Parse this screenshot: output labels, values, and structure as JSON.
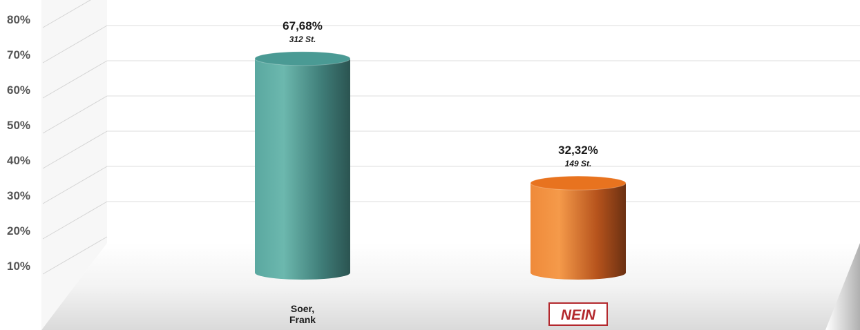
{
  "chart_data": {
    "type": "bar",
    "categories": [
      "Soer,\nFrank",
      "NEIN"
    ],
    "values": [
      67.68,
      32.32
    ],
    "value_labels": [
      "67,68%",
      "32,32%"
    ],
    "count_labels": [
      "312 St.",
      "149 St."
    ],
    "y_ticks": [
      "10%",
      "20%",
      "30%",
      "40%",
      "50%",
      "60%",
      "70%",
      "80%"
    ],
    "ylim": [
      10,
      80
    ],
    "colors": [
      "#4a9a94",
      "#e8731f"
    ],
    "nein_border": "#b3282d",
    "grid": true,
    "title": "",
    "xlabel": "",
    "ylabel": ""
  }
}
